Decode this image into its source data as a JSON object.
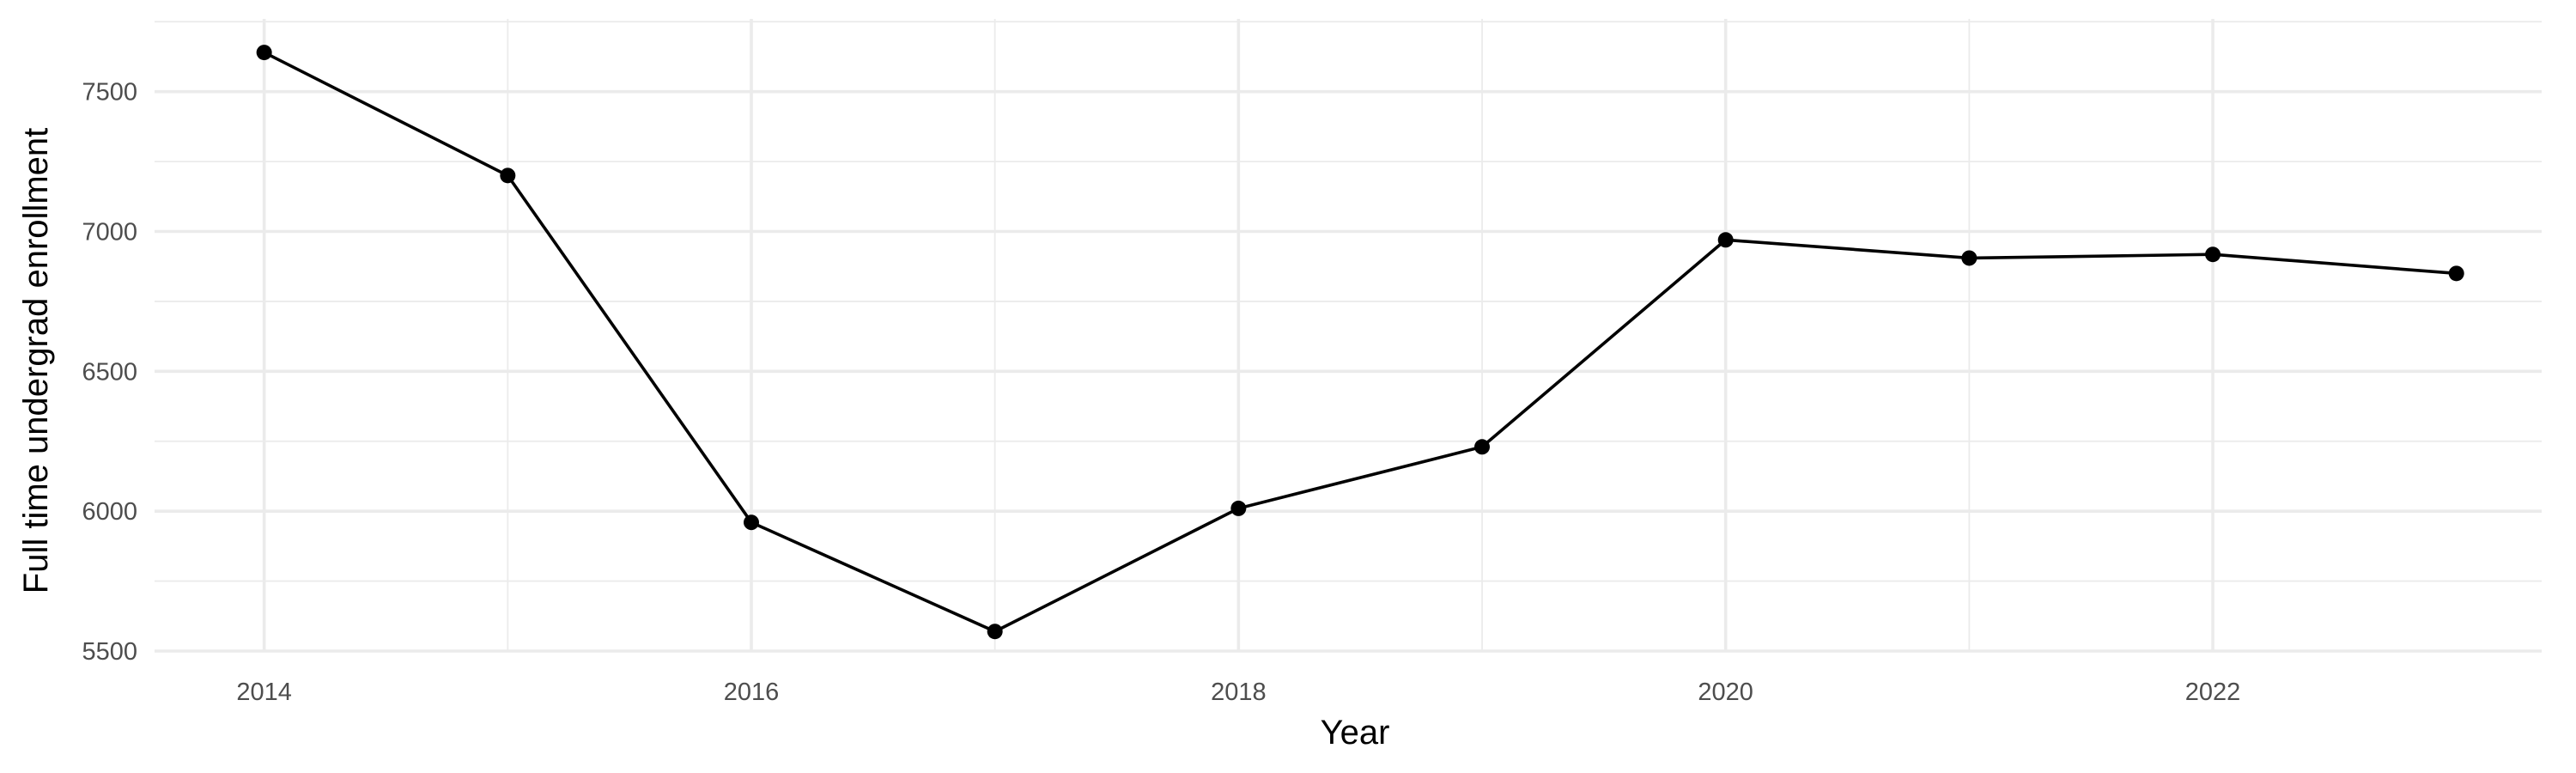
{
  "chart_data": {
    "type": "line",
    "xlabel": "Year",
    "ylabel": "Full time undergrad enrollment",
    "x": [
      2014,
      2015,
      2016,
      2017,
      2018,
      2019,
      2020,
      2021,
      2022,
      2023
    ],
    "series": [
      {
        "values": [
          7640,
          7200,
          5960,
          5570,
          6010,
          6230,
          6970,
          6905,
          6918,
          6850
        ],
        "color": "#000000"
      }
    ],
    "x_ticks": [
      2014,
      2016,
      2018,
      2020,
      2022
    ],
    "y_ticks": [
      5500,
      6000,
      6500,
      7000,
      7500
    ],
    "xlim": [
      2013.55,
      2023.35
    ],
    "ylim": [
      5500,
      7760
    ],
    "grid": true,
    "grid_color": "#ebebeb",
    "theme": "minimal"
  }
}
